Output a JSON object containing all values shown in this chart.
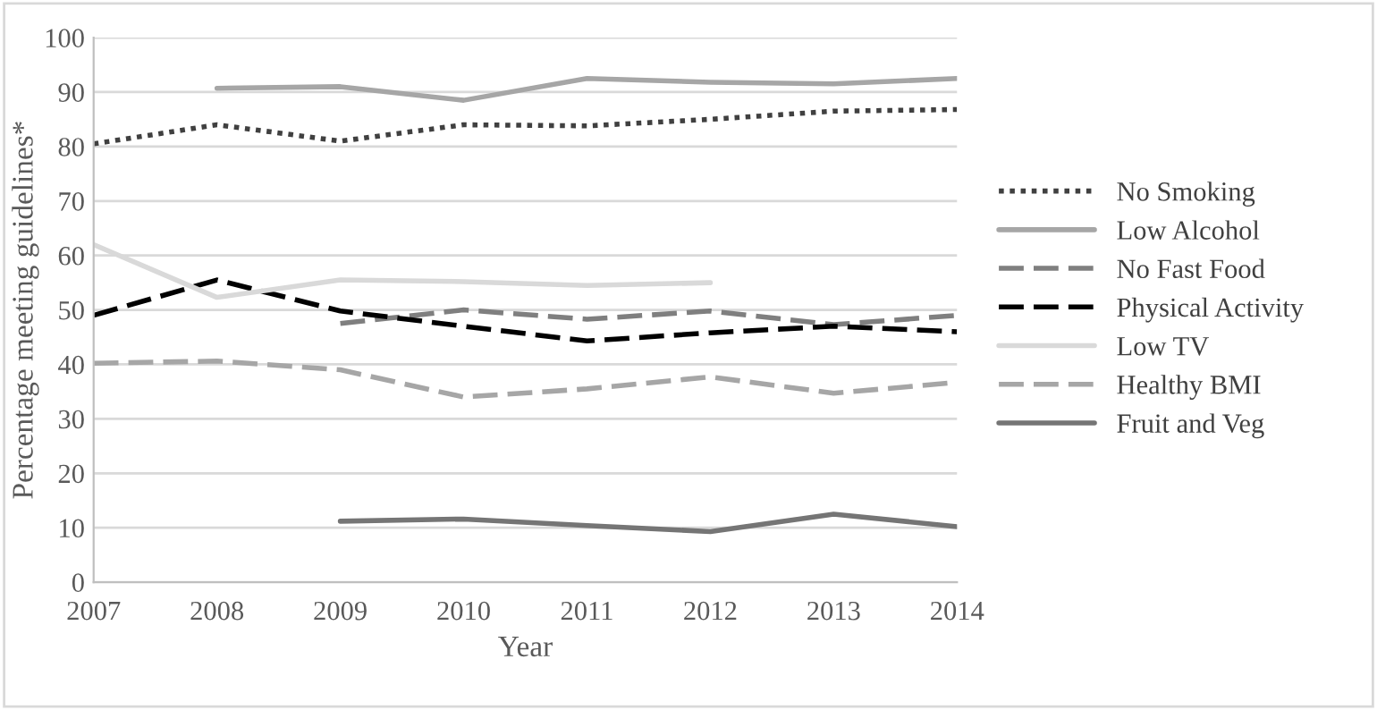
{
  "chart_data": {
    "type": "line",
    "xlabel": "Year",
    "ylabel": "Percentage meeting guidelines*",
    "x": [
      2007,
      2008,
      2009,
      2010,
      2011,
      2012,
      2013,
      2014
    ],
    "xlim": [
      2007,
      2014
    ],
    "xticks": [
      2007,
      2008,
      2009,
      2010,
      2011,
      2012,
      2013,
      2014
    ],
    "ylim": [
      0,
      100
    ],
    "yticks": [
      0,
      10,
      20,
      30,
      40,
      50,
      60,
      70,
      80,
      90,
      100
    ],
    "grid": "y",
    "legend": "right",
    "marker": "none",
    "series": [
      {
        "name": "No Smoking",
        "color": "#404040",
        "line_style": "dotted",
        "values": [
          80.5,
          84,
          81,
          84,
          83.8,
          85,
          86.5,
          86.8
        ]
      },
      {
        "name": "Low Alcohol",
        "color": "#a6a6a6",
        "line_style": "solid",
        "values": [
          null,
          90.7,
          91,
          88.5,
          92.5,
          91.8,
          91.5,
          92.5
        ]
      },
      {
        "name": "No Fast Food",
        "color": "#7f7f7f",
        "line_style": "dashed",
        "values": [
          null,
          null,
          47.5,
          50,
          48.3,
          49.8,
          47.3,
          49
        ]
      },
      {
        "name": "Physical Activity",
        "color": "#000000",
        "line_style": "dashed",
        "values": [
          49,
          55.5,
          49.8,
          47,
          44.3,
          45.8,
          47,
          46
        ]
      },
      {
        "name": "Low TV",
        "color": "#d9d9d9",
        "line_style": "solid",
        "values": [
          62,
          52.3,
          55.5,
          55.2,
          54.5,
          55,
          null,
          null
        ]
      },
      {
        "name": "Healthy BMI",
        "color": "#a6a6a6",
        "line_style": "dashed",
        "values": [
          40.2,
          40.6,
          39,
          34,
          35.5,
          37.7,
          34.7,
          36.7
        ]
      },
      {
        "name": "Fruit and Veg",
        "color": "#757575",
        "line_style": "solid",
        "values": [
          null,
          null,
          11.2,
          11.6,
          10.4,
          9.3,
          12.5,
          10.2
        ]
      }
    ]
  }
}
